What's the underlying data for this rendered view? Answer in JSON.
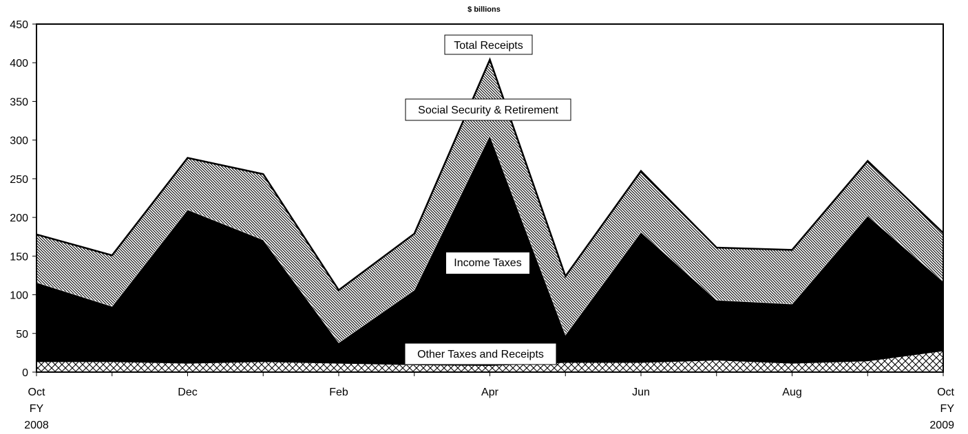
{
  "chart_data": {
    "type": "area",
    "stacked": true,
    "title": "$ billions",
    "xlabel": "",
    "ylabel": "",
    "ylim": [
      0,
      450
    ],
    "yticks": [
      0,
      50,
      100,
      150,
      200,
      250,
      300,
      350,
      400,
      450
    ],
    "x_labels": [
      [
        "Oct",
        "FY",
        "2008"
      ],
      [
        ""
      ],
      [
        "Dec"
      ],
      [
        ""
      ],
      [
        "Feb"
      ],
      [
        ""
      ],
      [
        "Apr"
      ],
      [
        ""
      ],
      [
        "Jun"
      ],
      [
        ""
      ],
      [
        "Aug"
      ],
      [
        ""
      ],
      [
        "Oct",
        "FY",
        "2009"
      ]
    ],
    "series": [
      {
        "name": "Other Taxes and Receipts",
        "values": [
          13,
          13,
          11,
          13,
          11,
          9,
          8,
          12,
          12,
          15,
          11,
          14,
          27
        ]
      },
      {
        "name": "Income Taxes",
        "values": [
          103,
          72,
          199,
          158,
          27,
          97,
          298,
          36,
          169,
          78,
          77,
          188,
          90
        ]
      },
      {
        "name": "Social Security & Retirement",
        "values": [
          62,
          66,
          67,
          85,
          68,
          73,
          98,
          76,
          79,
          68,
          70,
          71,
          63
        ]
      }
    ],
    "total_label": "Total Receipts",
    "total": [
      178,
      151,
      277,
      256,
      106,
      179,
      404,
      124,
      260,
      161,
      158,
      273,
      180
    ],
    "colors": {
      "other": "#ffffff",
      "income": "#000000",
      "social": "#ffffff",
      "hatch": "#000000"
    }
  }
}
